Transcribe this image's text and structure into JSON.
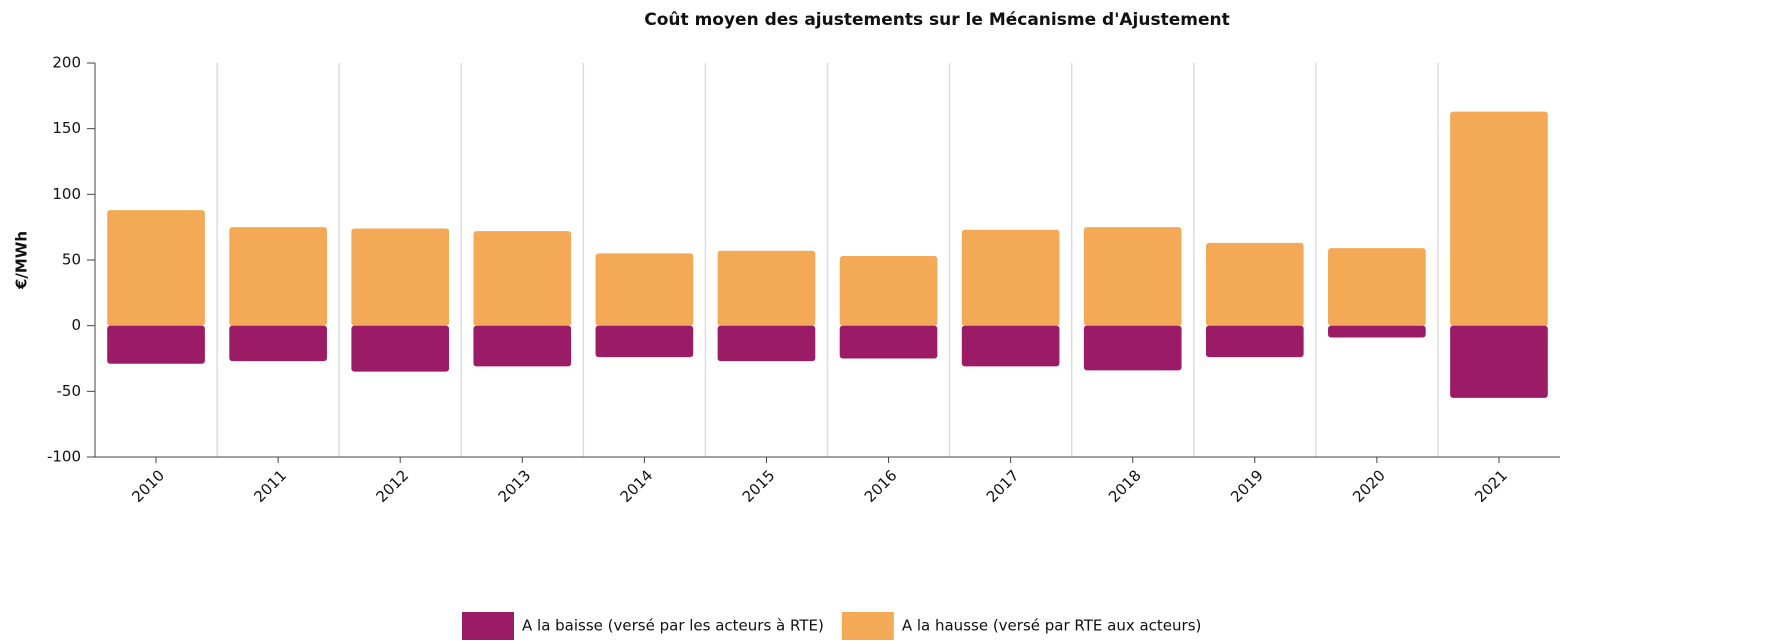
{
  "chart_data": {
    "type": "bar",
    "title": "Coût moyen des ajustements sur le Mécanisme d'Ajustement",
    "y_label": "€/MWh",
    "categories": [
      "2010",
      "2011",
      "2012",
      "2013",
      "2014",
      "2015",
      "2016",
      "2017",
      "2018",
      "2019",
      "2020",
      "2021"
    ],
    "series": [
      {
        "name": "A la baisse (versé par les acteurs à RTE)",
        "color": "#9b1b66",
        "values": [
          -29,
          -27,
          -35,
          -31,
          -24,
          -27,
          -25,
          -31,
          -34,
          -24,
          -9,
          -55
        ]
      },
      {
        "name": "A la hausse (versé par RTE aux acteurs)",
        "color": "#f4a957",
        "values": [
          88,
          75,
          74,
          72,
          55,
          57,
          53,
          73,
          75,
          63,
          59,
          163
        ]
      }
    ],
    "ylim": [
      -100,
      200
    ],
    "yticks": [
      -100,
      -50,
      0,
      50,
      100,
      150,
      200
    ],
    "grid": true,
    "legend": "bottom"
  }
}
